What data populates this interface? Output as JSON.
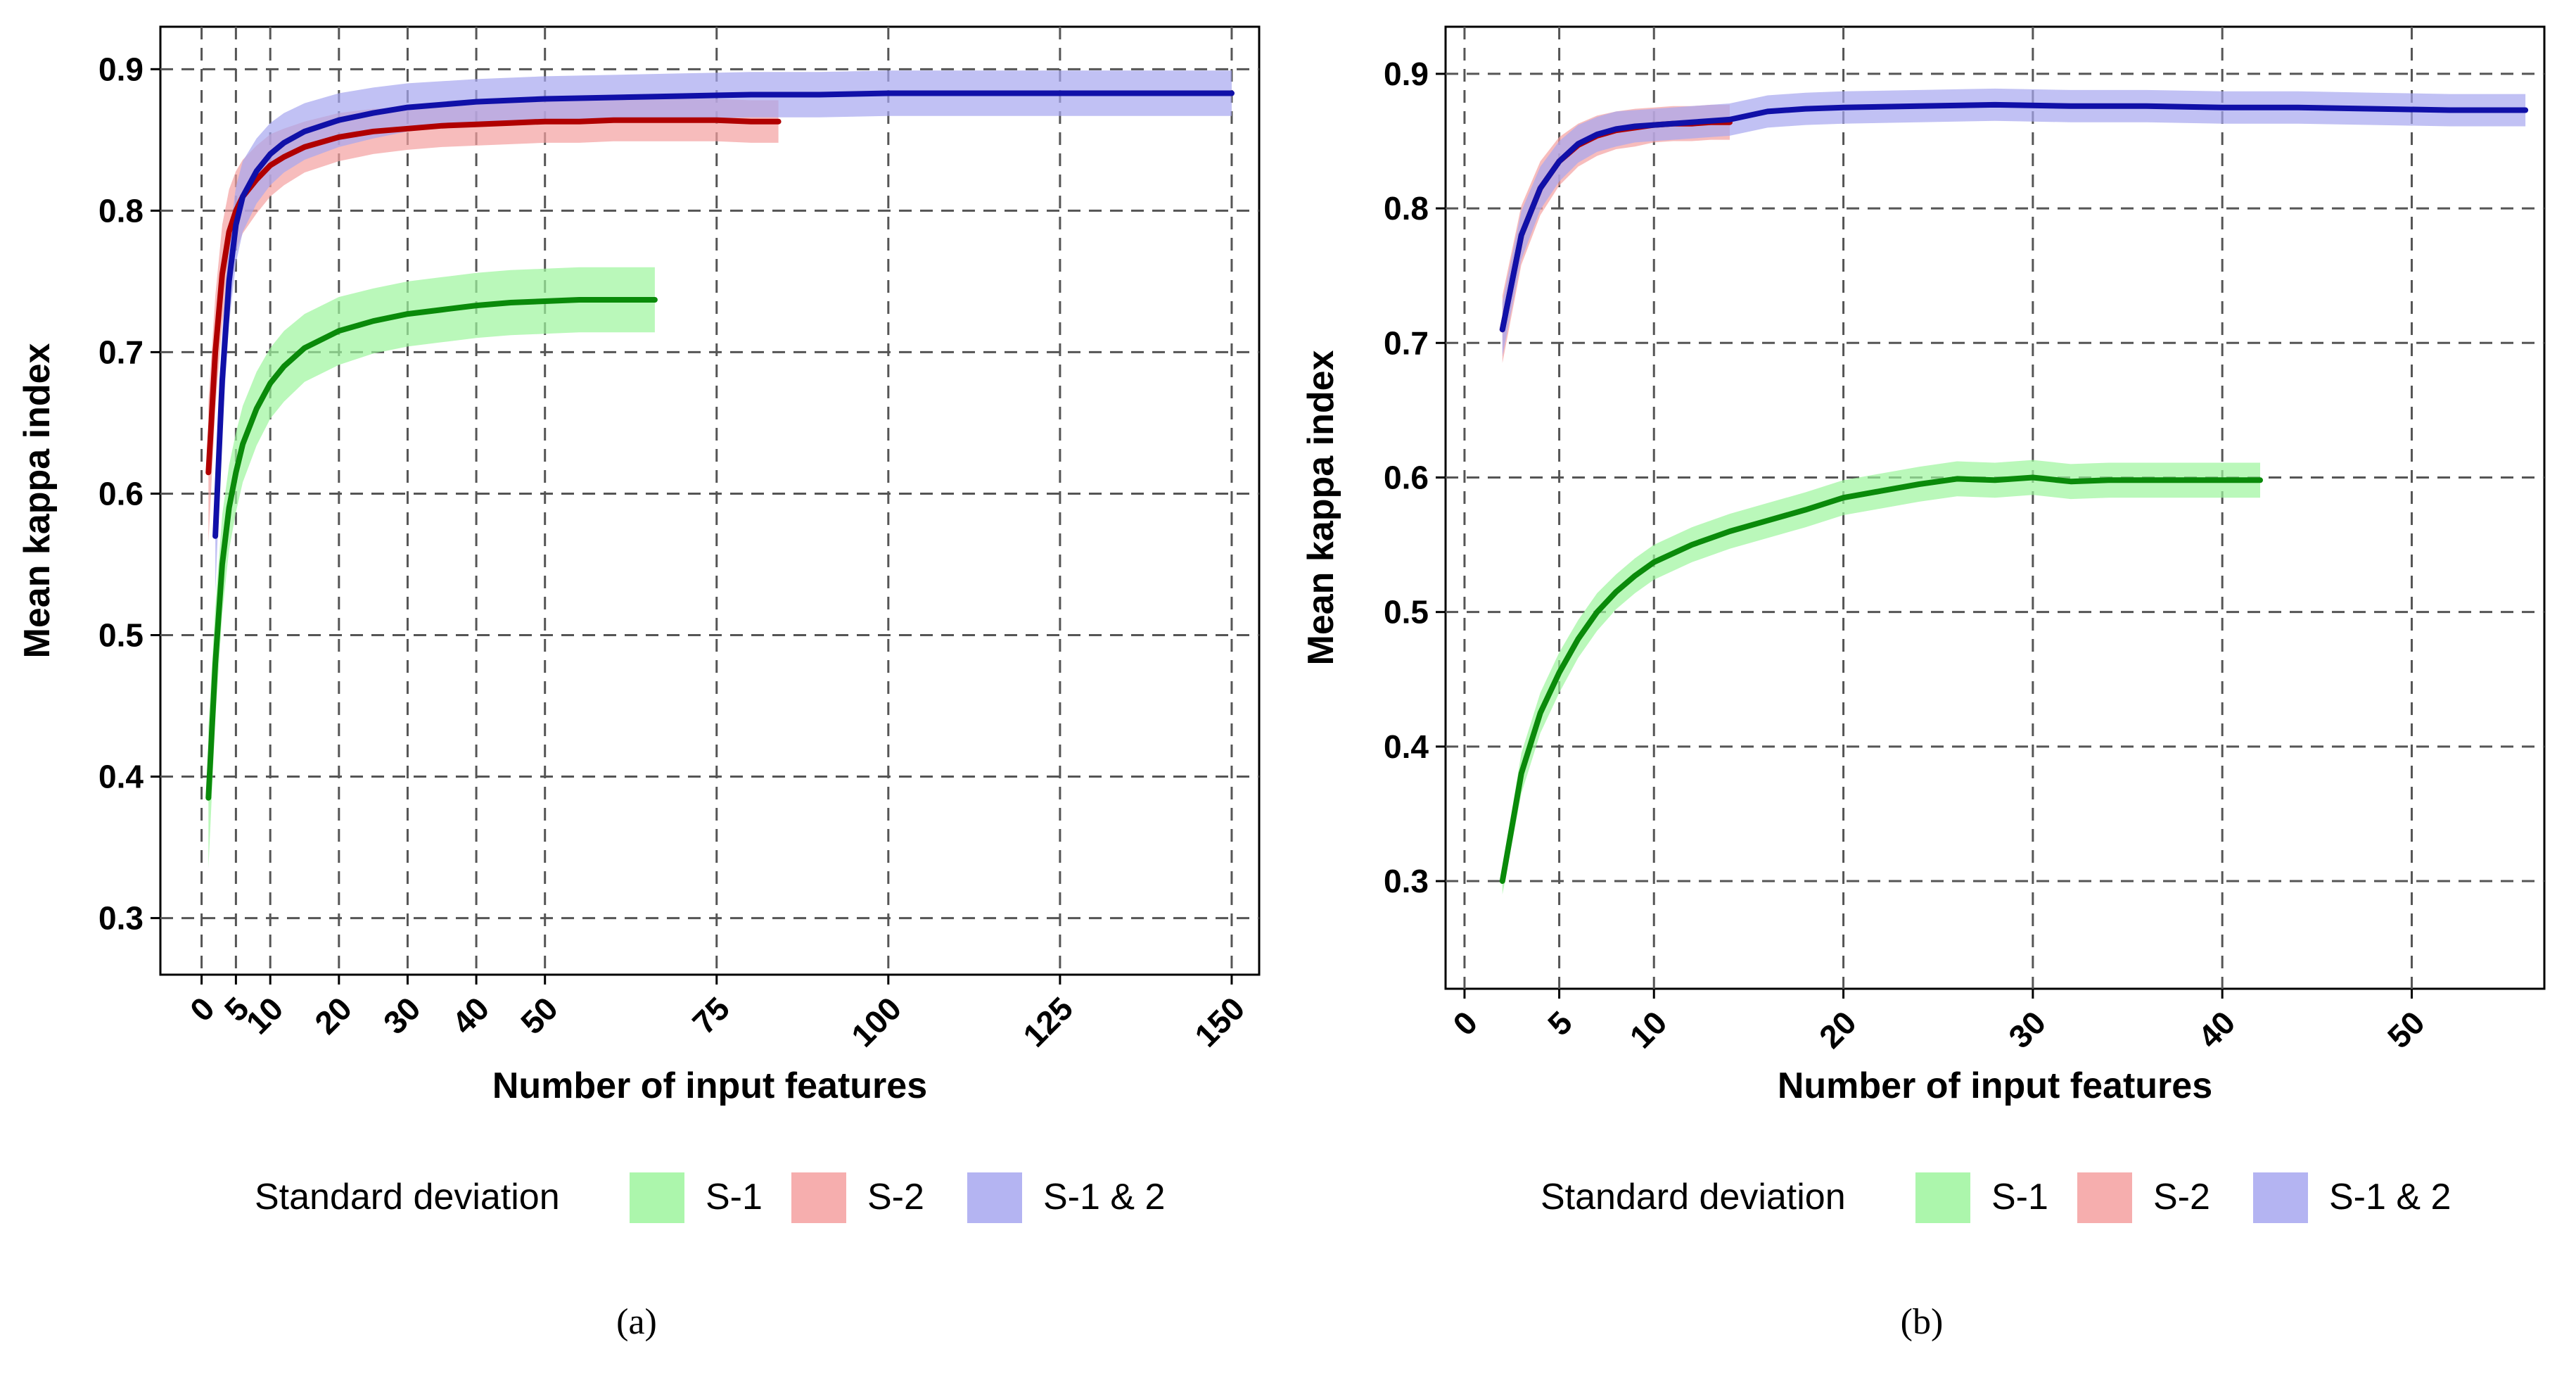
{
  "chart_data": [
    {
      "type": "line",
      "caption": "(a)",
      "xlabel": "Number of input features",
      "ylabel": "Mean kappa index",
      "xlim": [
        -6,
        154
      ],
      "ylim": [
        0.26,
        0.93
      ],
      "xticks": [
        0,
        5,
        10,
        20,
        30,
        40,
        50,
        75,
        100,
        125,
        150
      ],
      "yticks": [
        0.3,
        0.4,
        0.5,
        0.6,
        0.7,
        0.8,
        0.9
      ],
      "grid": true,
      "legend": {
        "title": "Standard deviation",
        "position": "bottom",
        "entries": [
          "S-1",
          "S-2",
          "S-1 & 2"
        ]
      },
      "series": [
        {
          "name": "S-1",
          "line_color": "#0a8a0a",
          "band_color": "#9df59d",
          "x": [
            1,
            2,
            3,
            4,
            5,
            6,
            8,
            10,
            12,
            15,
            20,
            25,
            30,
            35,
            40,
            45,
            50,
            55,
            60,
            66
          ],
          "mean": [
            0.385,
            0.48,
            0.55,
            0.59,
            0.615,
            0.635,
            0.66,
            0.678,
            0.69,
            0.703,
            0.715,
            0.722,
            0.727,
            0.73,
            0.733,
            0.735,
            0.736,
            0.737,
            0.737,
            0.737
          ],
          "sd": [
            0.05,
            0.04,
            0.035,
            0.03,
            0.028,
            0.027,
            0.026,
            0.025,
            0.025,
            0.024,
            0.024,
            0.023,
            0.023,
            0.023,
            0.023,
            0.023,
            0.023,
            0.023,
            0.023,
            0.023
          ]
        },
        {
          "name": "S-2",
          "line_color": "#b00000",
          "band_color": "#f4a0a0",
          "x": [
            1,
            2,
            3,
            4,
            5,
            6,
            8,
            10,
            12,
            15,
            20,
            25,
            30,
            35,
            40,
            45,
            50,
            55,
            60,
            65,
            70,
            75,
            80,
            84
          ],
          "mean": [
            0.615,
            0.7,
            0.755,
            0.785,
            0.8,
            0.81,
            0.822,
            0.832,
            0.838,
            0.845,
            0.852,
            0.856,
            0.858,
            0.86,
            0.861,
            0.862,
            0.863,
            0.863,
            0.864,
            0.864,
            0.864,
            0.864,
            0.863,
            0.863
          ],
          "sd": [
            0.05,
            0.04,
            0.035,
            0.03,
            0.028,
            0.026,
            0.024,
            0.022,
            0.02,
            0.018,
            0.017,
            0.016,
            0.015,
            0.015,
            0.015,
            0.015,
            0.015,
            0.015,
            0.015,
            0.015,
            0.015,
            0.015,
            0.015,
            0.015
          ]
        },
        {
          "name": "S-1 & 2",
          "line_color": "#1010a8",
          "band_color": "#a7a7f0",
          "x": [
            2,
            3,
            4,
            5,
            6,
            8,
            10,
            12,
            15,
            20,
            25,
            30,
            40,
            50,
            60,
            70,
            80,
            90,
            100,
            110,
            120,
            130,
            140,
            150
          ],
          "mean": [
            0.57,
            0.68,
            0.75,
            0.79,
            0.81,
            0.828,
            0.84,
            0.848,
            0.856,
            0.864,
            0.869,
            0.873,
            0.877,
            0.879,
            0.88,
            0.881,
            0.882,
            0.882,
            0.883,
            0.883,
            0.883,
            0.883,
            0.883,
            0.883
          ],
          "sd": [
            0.04,
            0.035,
            0.03,
            0.027,
            0.025,
            0.023,
            0.022,
            0.021,
            0.02,
            0.019,
            0.018,
            0.017,
            0.016,
            0.016,
            0.016,
            0.016,
            0.016,
            0.016,
            0.016,
            0.016,
            0.016,
            0.016,
            0.016,
            0.016
          ]
        }
      ]
    },
    {
      "type": "line",
      "caption": "(b)",
      "xlabel": "Number of input features",
      "ylabel": "Mean kappa index",
      "xlim": [
        -1,
        57
      ],
      "ylim": [
        0.22,
        0.935
      ],
      "xticks": [
        0,
        5,
        10,
        20,
        30,
        40,
        50
      ],
      "yticks": [
        0.3,
        0.4,
        0.5,
        0.6,
        0.7,
        0.8,
        0.9
      ],
      "grid": true,
      "legend": {
        "title": "Standard deviation",
        "position": "bottom",
        "entries": [
          "S-1",
          "S-2",
          "S-1 & 2"
        ]
      },
      "series": [
        {
          "name": "S-1",
          "line_color": "#0a8a0a",
          "band_color": "#9df59d",
          "x": [
            2,
            3,
            4,
            5,
            6,
            7,
            8,
            9,
            10,
            12,
            14,
            16,
            18,
            20,
            22,
            24,
            26,
            28,
            30,
            32,
            34,
            36,
            38,
            40,
            42
          ],
          "mean": [
            0.3,
            0.38,
            0.425,
            0.455,
            0.48,
            0.5,
            0.515,
            0.527,
            0.537,
            0.55,
            0.56,
            0.568,
            0.576,
            0.585,
            0.59,
            0.595,
            0.599,
            0.598,
            0.6,
            0.597,
            0.598,
            0.598,
            0.598,
            0.598,
            0.598
          ],
          "sd": [
            0.01,
            0.015,
            0.015,
            0.015,
            0.014,
            0.014,
            0.013,
            0.013,
            0.013,
            0.013,
            0.013,
            0.013,
            0.013,
            0.013,
            0.013,
            0.013,
            0.013,
            0.013,
            0.013,
            0.013,
            0.013,
            0.013,
            0.013,
            0.013,
            0.013
          ]
        },
        {
          "name": "S-2",
          "line_color": "#b00000",
          "band_color": "#f4a0a0",
          "x": [
            2,
            3,
            4,
            5,
            6,
            7,
            8,
            9,
            10,
            11,
            12,
            13,
            14
          ],
          "mean": [
            0.71,
            0.78,
            0.815,
            0.835,
            0.847,
            0.854,
            0.858,
            0.86,
            0.862,
            0.863,
            0.863,
            0.864,
            0.864
          ],
          "sd": [
            0.025,
            0.022,
            0.02,
            0.018,
            0.016,
            0.015,
            0.014,
            0.014,
            0.013,
            0.013,
            0.013,
            0.013,
            0.013
          ]
        },
        {
          "name": "S-1 & 2",
          "line_color": "#1010a8",
          "band_color": "#a7a7f0",
          "x": [
            2,
            3,
            4,
            5,
            6,
            7,
            8,
            9,
            10,
            12,
            14,
            16,
            18,
            20,
            24,
            28,
            32,
            36,
            40,
            44,
            48,
            52,
            56
          ],
          "mean": [
            0.71,
            0.78,
            0.815,
            0.835,
            0.848,
            0.855,
            0.859,
            0.861,
            0.862,
            0.864,
            0.866,
            0.872,
            0.874,
            0.875,
            0.876,
            0.877,
            0.876,
            0.876,
            0.875,
            0.875,
            0.874,
            0.873,
            0.873
          ],
          "sd": [
            0.02,
            0.018,
            0.016,
            0.015,
            0.014,
            0.013,
            0.013,
            0.012,
            0.012,
            0.012,
            0.012,
            0.012,
            0.012,
            0.012,
            0.012,
            0.012,
            0.012,
            0.012,
            0.012,
            0.012,
            0.012,
            0.012,
            0.012
          ]
        }
      ]
    }
  ]
}
